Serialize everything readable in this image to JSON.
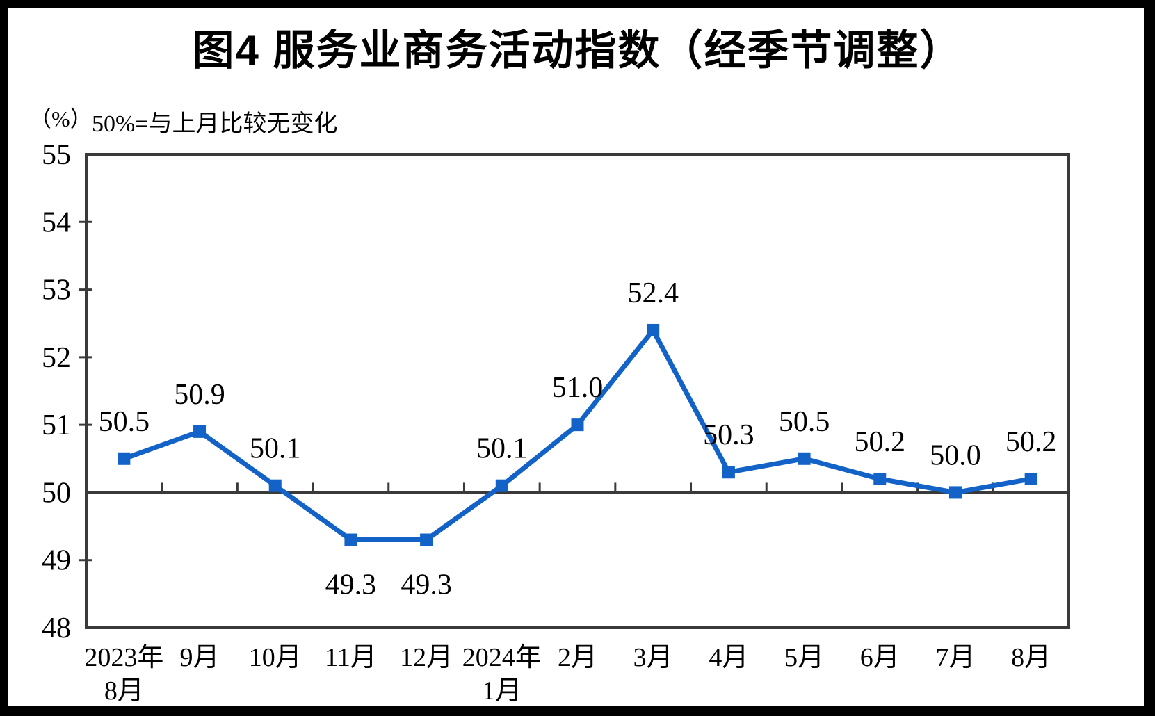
{
  "chart_data": {
    "type": "line",
    "title": "图4 服务业商务活动指数（经季节调整）",
    "unit_label": "（%）",
    "subtitle": "50%=与上月比较无变化",
    "categories": [
      "2023年\n8月",
      "9月",
      "10月",
      "11月",
      "12月",
      "2024年\n1月",
      "2月",
      "3月",
      "4月",
      "5月",
      "6月",
      "7月",
      "8月"
    ],
    "values": [
      50.5,
      50.9,
      50.1,
      49.3,
      49.3,
      50.1,
      51.0,
      52.4,
      50.3,
      50.5,
      50.2,
      50.0,
      50.2
    ],
    "value_labels": [
      "50.5",
      "50.9",
      "50.1",
      "49.3",
      "49.3",
      "50.1",
      "51.0",
      "52.4",
      "50.3",
      "50.5",
      "50.2",
      "50.0",
      "50.2"
    ],
    "ylim": [
      48,
      55
    ],
    "ytick_step": 1,
    "reference_line": 50,
    "line_color": "#1262C7",
    "marker_color": "#1262C7",
    "axis_color": "#3A3A3A",
    "text_color": "#000000",
    "grid": false,
    "legend": "none",
    "marker_shape": "square"
  }
}
